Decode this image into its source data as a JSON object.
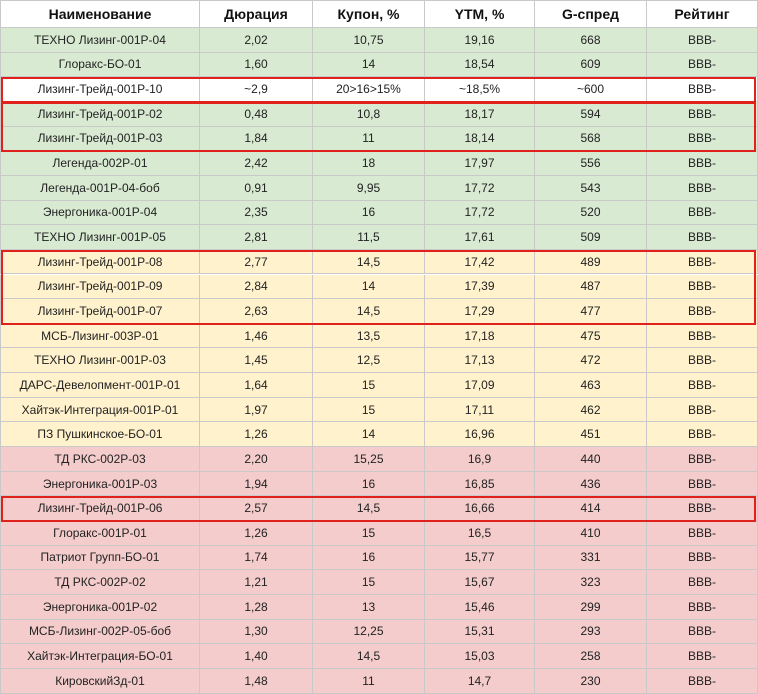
{
  "columns": [
    "Наименование",
    "Дюрация",
    "Купон, %",
    "YTM, %",
    "G-спред",
    "Рейтинг"
  ],
  "rows": [
    {
      "name": "ТЕХНО Лизинг-001Р-04",
      "duration": "2,02",
      "coupon": "10,75",
      "ytm": "19,16",
      "gspread": "668",
      "rating": "BBB-",
      "color": "green"
    },
    {
      "name": "Глоракс-БО-01",
      "duration": "1,60",
      "coupon": "14",
      "ytm": "18,54",
      "gspread": "609",
      "rating": "BBB-",
      "color": "green"
    },
    {
      "name": "Лизинг-Трейд-001Р-10",
      "duration": "~2,9",
      "coupon": "20>16>15%",
      "ytm": "~18,5%",
      "gspread": "~600",
      "rating": "BBB-",
      "color": "white"
    },
    {
      "name": "Лизинг-Трейд-001Р-02",
      "duration": "0,48",
      "coupon": "10,8",
      "ytm": "18,17",
      "gspread": "594",
      "rating": "BBB-",
      "color": "green"
    },
    {
      "name": "Лизинг-Трейд-001Р-03",
      "duration": "1,84",
      "coupon": "11",
      "ytm": "18,14",
      "gspread": "568",
      "rating": "BBB-",
      "color": "green"
    },
    {
      "name": "Легенда-002Р-01",
      "duration": "2,42",
      "coupon": "18",
      "ytm": "17,97",
      "gspread": "556",
      "rating": "BBB-",
      "color": "green"
    },
    {
      "name": "Легенда-001Р-04-боб",
      "duration": "0,91",
      "coupon": "9,95",
      "ytm": "17,72",
      "gspread": "543",
      "rating": "BBB-",
      "color": "green"
    },
    {
      "name": "Энергоника-001Р-04",
      "duration": "2,35",
      "coupon": "16",
      "ytm": "17,72",
      "gspread": "520",
      "rating": "BBB-",
      "color": "green"
    },
    {
      "name": "ТЕХНО Лизинг-001Р-05",
      "duration": "2,81",
      "coupon": "11,5",
      "ytm": "17,61",
      "gspread": "509",
      "rating": "BBB-",
      "color": "green"
    },
    {
      "name": "Лизинг-Трейд-001Р-08",
      "duration": "2,77",
      "coupon": "14,5",
      "ytm": "17,42",
      "gspread": "489",
      "rating": "BBB-",
      "color": "yellow"
    },
    {
      "name": "Лизинг-Трейд-001Р-09",
      "duration": "2,84",
      "coupon": "14",
      "ytm": "17,39",
      "gspread": "487",
      "rating": "BBB-",
      "color": "yellow"
    },
    {
      "name": "Лизинг-Трейд-001Р-07",
      "duration": "2,63",
      "coupon": "14,5",
      "ytm": "17,29",
      "gspread": "477",
      "rating": "BBB-",
      "color": "yellow"
    },
    {
      "name": "МСБ-Лизинг-003Р-01",
      "duration": "1,46",
      "coupon": "13,5",
      "ytm": "17,18",
      "gspread": "475",
      "rating": "BBB-",
      "color": "yellow"
    },
    {
      "name": "ТЕХНО Лизинг-001Р-03",
      "duration": "1,45",
      "coupon": "12,5",
      "ytm": "17,13",
      "gspread": "472",
      "rating": "BBB-",
      "color": "yellow"
    },
    {
      "name": "ДАРС-Девелопмент-001Р-01",
      "duration": "1,64",
      "coupon": "15",
      "ytm": "17,09",
      "gspread": "463",
      "rating": "BBB-",
      "color": "yellow"
    },
    {
      "name": "Хайтэк-Интеграция-001Р-01",
      "duration": "1,97",
      "coupon": "15",
      "ytm": "17,11",
      "gspread": "462",
      "rating": "BBB-",
      "color": "yellow"
    },
    {
      "name": "ПЗ Пушкинское-БО-01",
      "duration": "1,26",
      "coupon": "14",
      "ytm": "16,96",
      "gspread": "451",
      "rating": "BBB-",
      "color": "yellow"
    },
    {
      "name": "ТД РКС-002Р-03",
      "duration": "2,20",
      "coupon": "15,25",
      "ytm": "16,9",
      "gspread": "440",
      "rating": "BBB-",
      "color": "red"
    },
    {
      "name": "Энергоника-001Р-03",
      "duration": "1,94",
      "coupon": "16",
      "ytm": "16,85",
      "gspread": "436",
      "rating": "BBB-",
      "color": "red"
    },
    {
      "name": "Лизинг-Трейд-001Р-06",
      "duration": "2,57",
      "coupon": "14,5",
      "ytm": "16,66",
      "gspread": "414",
      "rating": "BBB-",
      "color": "red"
    },
    {
      "name": "Глоракс-001Р-01",
      "duration": "1,26",
      "coupon": "15",
      "ytm": "16,5",
      "gspread": "410",
      "rating": "BBB-",
      "color": "red"
    },
    {
      "name": "Патриот Групп-БО-01",
      "duration": "1,74",
      "coupon": "16",
      "ytm": "15,77",
      "gspread": "331",
      "rating": "BBB-",
      "color": "red"
    },
    {
      "name": "ТД РКС-002Р-02",
      "duration": "1,21",
      "coupon": "15",
      "ytm": "15,67",
      "gspread": "323",
      "rating": "BBB-",
      "color": "red"
    },
    {
      "name": "Энергоника-001Р-02",
      "duration": "1,28",
      "coupon": "13",
      "ytm": "15,46",
      "gspread": "299",
      "rating": "BBB-",
      "color": "red"
    },
    {
      "name": "МСБ-Лизинг-002Р-05-боб",
      "duration": "1,30",
      "coupon": "12,25",
      "ytm": "15,31",
      "gspread": "293",
      "rating": "BBB-",
      "color": "red"
    },
    {
      "name": "Хайтэк-Интеграция-БО-01",
      "duration": "1,40",
      "coupon": "14,5",
      "ytm": "15,03",
      "gspread": "258",
      "rating": "BBB-",
      "color": "red"
    },
    {
      "name": "КировскийЗд-01",
      "duration": "1,48",
      "coupon": "11",
      "ytm": "14,7",
      "gspread": "230",
      "rating": "BBB-",
      "color": "red"
    }
  ],
  "highlight_groups": [
    {
      "first_row": 2,
      "last_row": 2
    },
    {
      "first_row": 3,
      "last_row": 4
    },
    {
      "first_row": 9,
      "last_row": 11
    },
    {
      "first_row": 19,
      "last_row": 19
    }
  ],
  "colors": {
    "green": "#d9ead3",
    "yellow": "#fff2cc",
    "red": "#f4cccc",
    "white": "#ffffff",
    "highlight": "#e0211c"
  }
}
